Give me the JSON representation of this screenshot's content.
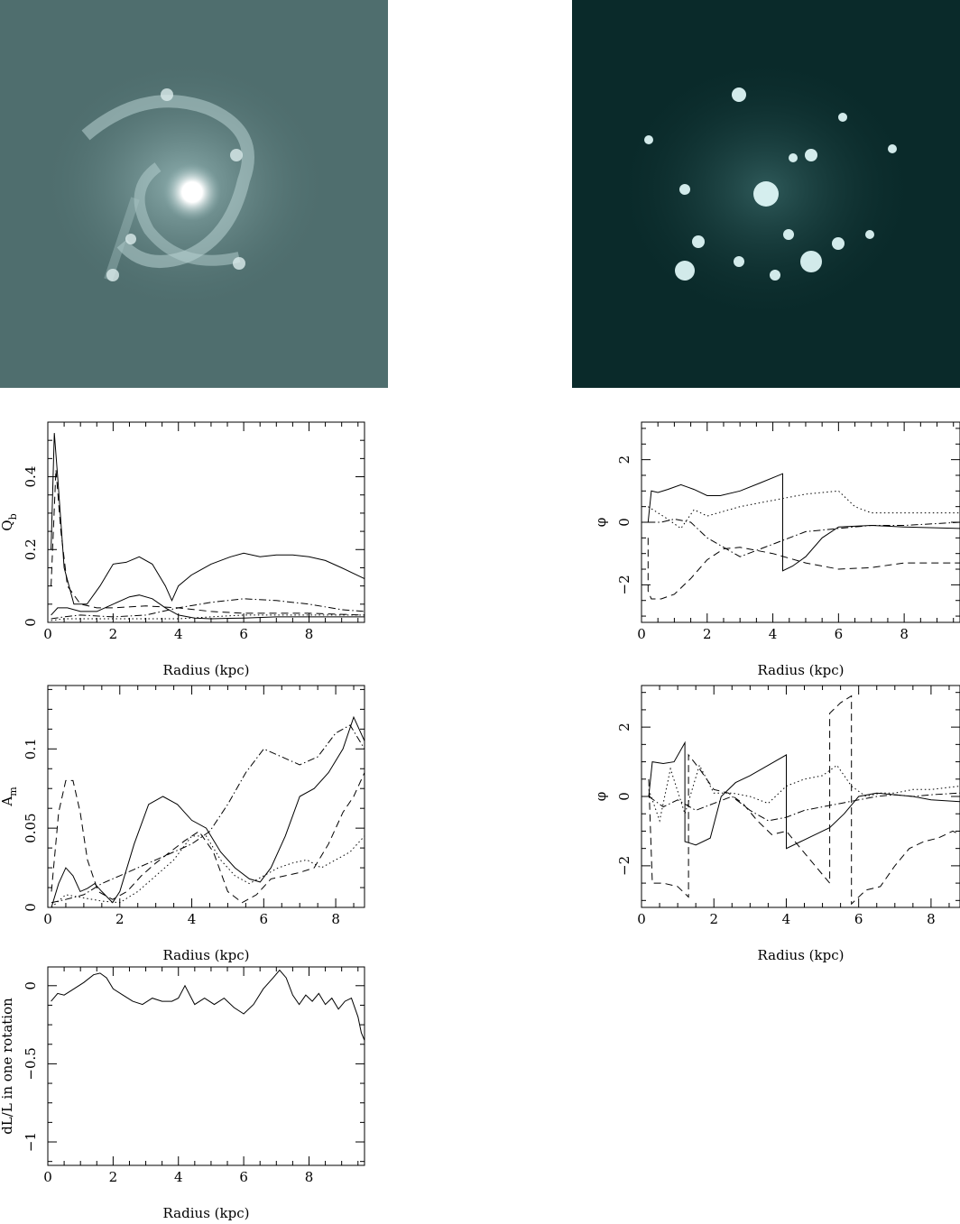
{
  "images": [
    {
      "name": "galaxy-near-infrared-image",
      "colormap": [
        "#4f6e6e",
        "#8fb0b0",
        "#ffffff"
      ]
    },
    {
      "name": "galaxy-residual-image",
      "colormap": [
        "#0a2a2a",
        "#2f5a5a",
        "#e8ffff"
      ]
    }
  ],
  "chart_data": [
    {
      "id": "qb",
      "type": "line",
      "xlabel": "Radius (kpc)",
      "ylabel": "Q",
      "ylabel_sub": "b",
      "xlim": [
        0,
        9.7
      ],
      "ylim": [
        0,
        0.55
      ],
      "xticks": [
        0,
        2,
        4,
        6,
        8
      ],
      "yticks": [
        0,
        0.2,
        0.4
      ],
      "ytick_labels": [
        "0",
        "0.2",
        "0.4"
      ],
      "series": [
        {
          "style": "solid",
          "x": [
            0.1,
            0.2,
            0.3,
            0.5,
            0.8,
            1.2,
            1.6,
            2.0,
            2.4,
            2.8,
            3.2,
            3.6,
            3.8,
            4.0,
            4.4,
            5.0,
            5.6,
            6.0,
            6.5,
            7.0,
            7.5,
            8.0,
            8.5,
            9.0,
            9.7
          ],
          "y": [
            0.2,
            0.52,
            0.4,
            0.15,
            0.05,
            0.05,
            0.1,
            0.16,
            0.165,
            0.18,
            0.16,
            0.1,
            0.06,
            0.1,
            0.13,
            0.16,
            0.18,
            0.19,
            0.18,
            0.185,
            0.185,
            0.18,
            0.17,
            0.15,
            0.12
          ]
        },
        {
          "style": "solid",
          "x": [
            0.1,
            0.3,
            0.6,
            1.0,
            1.5,
            2.0,
            2.5,
            2.8,
            3.2,
            3.6,
            4.0,
            4.5,
            5.0,
            6.0,
            7.0,
            8.0,
            9.0,
            9.7
          ],
          "y": [
            0.02,
            0.04,
            0.04,
            0.03,
            0.03,
            0.05,
            0.07,
            0.075,
            0.065,
            0.04,
            0.02,
            0.012,
            0.01,
            0.012,
            0.015,
            0.015,
            0.015,
            0.015
          ]
        },
        {
          "style": "dashed",
          "x": [
            0.1,
            0.25,
            0.4,
            0.6,
            1.0,
            1.5,
            2.0,
            3.0,
            4.0,
            5.0,
            6.0,
            7.0,
            8.0,
            9.0,
            9.7
          ],
          "y": [
            0.1,
            0.42,
            0.25,
            0.1,
            0.05,
            0.04,
            0.04,
            0.045,
            0.04,
            0.03,
            0.025,
            0.025,
            0.025,
            0.022,
            0.02
          ]
        },
        {
          "style": "dashdot",
          "x": [
            0.1,
            0.5,
            1.0,
            2.0,
            3.0,
            4.0,
            5.0,
            6.0,
            7.0,
            8.0,
            9.0,
            9.7
          ],
          "y": [
            0.01,
            0.015,
            0.02,
            0.015,
            0.02,
            0.04,
            0.055,
            0.065,
            0.06,
            0.05,
            0.035,
            0.03
          ]
        },
        {
          "style": "dotted",
          "x": [
            0.1,
            0.5,
            1.0,
            2.0,
            3.0,
            4.0,
            5.0,
            6.0,
            7.0,
            8.0,
            9.0,
            9.7
          ],
          "y": [
            0.005,
            0.01,
            0.01,
            0.01,
            0.01,
            0.01,
            0.015,
            0.02,
            0.02,
            0.02,
            0.02,
            0.02
          ]
        }
      ]
    },
    {
      "id": "phi-top",
      "type": "line",
      "xlabel": "Radius (kpc)",
      "ylabel": "φ",
      "xlim": [
        0,
        9.7
      ],
      "ylim": [
        -3.2,
        3.2
      ],
      "xticks": [
        0,
        2,
        4,
        6,
        8
      ],
      "yticks": [
        -2,
        0,
        2
      ],
      "ytick_labels": [
        "−2",
        "0",
        "2"
      ],
      "series": [
        {
          "style": "solid",
          "x": [
            0.2,
            0.3,
            0.5,
            0.8,
            1.2,
            1.6,
            2.0,
            2.4,
            3.0,
            3.6,
            4.3,
            4.3,
            4.6,
            5.0,
            5.5,
            6.0,
            7.0,
            8.0,
            9.7
          ],
          "y": [
            0.0,
            1.0,
            0.95,
            1.05,
            1.2,
            1.05,
            0.85,
            0.85,
            1.0,
            1.25,
            1.55,
            -1.55,
            -1.4,
            -1.1,
            -0.5,
            -0.15,
            -0.1,
            -0.15,
            -0.2
          ]
        },
        {
          "style": "dashed",
          "x": [
            0.2,
            0.2,
            0.3,
            0.6,
            1.0,
            1.5,
            2.0,
            2.5,
            3.0,
            4.0,
            5.0,
            6.0,
            7.0,
            8.0,
            9.7
          ],
          "y": [
            -0.5,
            -2.2,
            -2.45,
            -2.45,
            -2.3,
            -1.8,
            -1.2,
            -0.85,
            -0.8,
            -1.0,
            -1.3,
            -1.5,
            -1.45,
            -1.3,
            -1.3
          ]
        },
        {
          "style": "dotted",
          "x": [
            0.2,
            0.5,
            0.8,
            1.2,
            1.6,
            2.0,
            3.0,
            4.0,
            5.0,
            6.0,
            6.5,
            7.0,
            8.0,
            9.7
          ],
          "y": [
            0.5,
            0.3,
            0.1,
            -0.2,
            0.4,
            0.2,
            0.5,
            0.7,
            0.9,
            1.0,
            0.5,
            0.3,
            0.3,
            0.3
          ]
        },
        {
          "style": "dashdot",
          "x": [
            0.2,
            0.6,
            1.0,
            1.5,
            2.0,
            3.0,
            4.0,
            5.0,
            6.0,
            7.0,
            8.0,
            9.7
          ],
          "y": [
            0.0,
            0.0,
            0.1,
            0.0,
            -0.5,
            -1.1,
            -0.7,
            -0.3,
            -0.2,
            -0.1,
            -0.1,
            0.0
          ]
        }
      ]
    },
    {
      "id": "am",
      "type": "line",
      "xlabel": "Radius (kpc)",
      "ylabel": "A",
      "ylabel_sub": "m",
      "xlim": [
        0,
        8.8
      ],
      "ylim": [
        0,
        0.14
      ],
      "xticks": [
        0,
        2,
        4,
        6,
        8
      ],
      "yticks": [
        0,
        0.05,
        0.1
      ],
      "ytick_labels": [
        "0",
        "0.05",
        "0.1"
      ],
      "series": [
        {
          "style": "solid",
          "x": [
            0.1,
            0.3,
            0.5,
            0.7,
            0.9,
            1.1,
            1.3,
            1.5,
            1.8,
            2.0,
            2.4,
            2.8,
            3.2,
            3.6,
            4.0,
            4.4,
            4.8,
            5.2,
            5.6,
            5.9,
            6.2,
            6.6,
            7.0,
            7.4,
            7.8,
            8.2,
            8.5,
            8.7,
            8.8
          ],
          "y": [
            0.0,
            0.015,
            0.025,
            0.02,
            0.01,
            0.012,
            0.015,
            0.01,
            0.003,
            0.01,
            0.04,
            0.065,
            0.07,
            0.065,
            0.055,
            0.05,
            0.035,
            0.025,
            0.018,
            0.016,
            0.025,
            0.045,
            0.07,
            0.075,
            0.085,
            0.1,
            0.12,
            0.11,
            0.105
          ]
        },
        {
          "style": "dashed",
          "x": [
            0.1,
            0.3,
            0.5,
            0.7,
            0.9,
            1.1,
            1.4,
            1.8,
            2.2,
            2.6,
            3.0,
            3.4,
            3.8,
            4.2,
            4.6,
            5.0,
            5.4,
            5.8,
            6.2,
            6.6,
            7.0,
            7.4,
            7.8,
            8.2,
            8.5,
            8.8
          ],
          "y": [
            0.01,
            0.06,
            0.08,
            0.08,
            0.06,
            0.03,
            0.01,
            0.005,
            0.01,
            0.02,
            0.028,
            0.035,
            0.042,
            0.048,
            0.035,
            0.01,
            0.003,
            0.008,
            0.018,
            0.02,
            0.022,
            0.025,
            0.04,
            0.06,
            0.07,
            0.085
          ]
        },
        {
          "style": "dotted",
          "x": [
            0.1,
            0.5,
            1.0,
            1.5,
            2.0,
            2.5,
            3.0,
            3.5,
            4.0,
            4.4,
            4.8,
            5.2,
            5.6,
            6.0,
            6.4,
            6.8,
            7.2,
            7.6,
            8.0,
            8.4,
            8.8
          ],
          "y": [
            0.0,
            0.008,
            0.006,
            0.004,
            0.003,
            0.01,
            0.02,
            0.03,
            0.045,
            0.045,
            0.03,
            0.02,
            0.015,
            0.02,
            0.025,
            0.028,
            0.03,
            0.025,
            0.03,
            0.035,
            0.045
          ]
        },
        {
          "style": "dashdot",
          "x": [
            0.1,
            0.5,
            1.0,
            1.5,
            2.0,
            2.5,
            3.0,
            3.5,
            4.0,
            4.5,
            5.0,
            5.5,
            6.0,
            6.5,
            7.0,
            7.5,
            8.0,
            8.4,
            8.8
          ],
          "y": [
            0.003,
            0.005,
            0.008,
            0.015,
            0.02,
            0.025,
            0.03,
            0.035,
            0.04,
            0.048,
            0.065,
            0.085,
            0.1,
            0.095,
            0.09,
            0.095,
            0.11,
            0.115,
            0.1
          ]
        }
      ]
    },
    {
      "id": "phi-bottom",
      "type": "line",
      "xlabel": "Radius (kpc)",
      "ylabel": "φ",
      "xlim": [
        0,
        8.8
      ],
      "ylim": [
        -3.2,
        3.2
      ],
      "xticks": [
        0,
        2,
        4,
        6,
        8
      ],
      "yticks": [
        -2,
        0,
        2
      ],
      "ytick_labels": [
        "−2",
        "0",
        "2"
      ],
      "series": [
        {
          "style": "solid",
          "x": [
            0.2,
            0.3,
            0.6,
            0.9,
            1.2,
            1.2,
            1.5,
            1.9,
            2.2,
            2.6,
            3.0,
            3.5,
            4.0,
            4.0,
            4.4,
            4.8,
            5.2,
            5.6,
            6.0,
            6.5,
            7.0,
            7.5,
            8.0,
            8.8
          ],
          "y": [
            0.0,
            1.0,
            0.95,
            1.0,
            1.55,
            -1.3,
            -1.4,
            -1.2,
            0.0,
            0.4,
            0.6,
            0.9,
            1.2,
            -1.5,
            -1.3,
            -1.1,
            -0.9,
            -0.5,
            0.0,
            0.1,
            0.05,
            0.0,
            -0.1,
            -0.15
          ]
        },
        {
          "style": "dashed",
          "x": [
            0.2,
            0.3,
            0.6,
            1.0,
            1.3,
            1.3,
            1.6,
            2.0,
            2.4,
            2.8,
            3.2,
            3.6,
            4.0,
            4.4,
            4.8,
            5.2,
            5.2,
            5.5,
            5.8,
            5.8,
            6.2,
            6.6,
            7.0,
            7.4,
            7.8,
            8.2,
            8.6,
            8.8
          ],
          "y": [
            0.5,
            -2.5,
            -2.5,
            -2.6,
            -2.9,
            1.2,
            0.8,
            0.2,
            0.1,
            -0.2,
            -0.7,
            -1.1,
            -1.0,
            -1.5,
            -2.0,
            -2.5,
            2.4,
            2.7,
            2.9,
            -3.1,
            -2.7,
            -2.6,
            -2.0,
            -1.5,
            -1.3,
            -1.2,
            -1.0,
            -1.1
          ]
        },
        {
          "style": "dotted",
          "x": [
            0.2,
            0.5,
            0.8,
            1.2,
            1.6,
            2.0,
            2.5,
            3.0,
            3.5,
            4.0,
            4.5,
            5.0,
            5.4,
            5.8,
            6.2,
            6.6,
            7.0,
            7.5,
            8.0,
            8.8
          ],
          "y": [
            0.2,
            -0.7,
            0.8,
            -0.5,
            0.9,
            0.1,
            0.1,
            0.0,
            -0.2,
            0.3,
            0.5,
            0.6,
            0.9,
            0.3,
            0.0,
            0.1,
            0.1,
            0.2,
            0.2,
            0.3
          ]
        },
        {
          "style": "dashdot",
          "x": [
            0.2,
            0.6,
            1.0,
            1.5,
            2.0,
            2.5,
            3.0,
            3.5,
            4.0,
            4.5,
            5.0,
            5.5,
            6.0,
            6.5,
            7.0,
            7.5,
            8.0,
            8.8
          ],
          "y": [
            0.0,
            -0.3,
            -0.1,
            -0.4,
            -0.2,
            0.0,
            -0.4,
            -0.7,
            -0.6,
            -0.4,
            -0.3,
            -0.2,
            -0.1,
            0.0,
            0.05,
            0.0,
            0.05,
            0.1
          ]
        }
      ]
    },
    {
      "id": "dl",
      "type": "line",
      "xlabel": "Radius (kpc)",
      "ylabel": "dL/L in one rotation",
      "xlim": [
        0,
        9.7
      ],
      "ylim": [
        -1.15,
        0.12
      ],
      "xticks": [
        0,
        2,
        4,
        6,
        8
      ],
      "yticks": [
        -1,
        -0.5,
        0
      ],
      "ytick_labels": [
        "−1",
        "−0.5",
        "0"
      ],
      "series": [
        {
          "style": "solid",
          "x": [
            0.1,
            0.3,
            0.5,
            0.8,
            1.1,
            1.4,
            1.6,
            1.8,
            2.0,
            2.3,
            2.6,
            2.9,
            3.2,
            3.5,
            3.8,
            4.0,
            4.2,
            4.5,
            4.8,
            5.1,
            5.4,
            5.7,
            6.0,
            6.3,
            6.6,
            6.9,
            7.1,
            7.3,
            7.5,
            7.7,
            7.9,
            8.1,
            8.3,
            8.5,
            8.7,
            8.9,
            9.1,
            9.3,
            9.5,
            9.6,
            9.7
          ],
          "y": [
            -0.1,
            -0.05,
            -0.06,
            -0.02,
            0.02,
            0.07,
            0.08,
            0.05,
            -0.02,
            -0.06,
            -0.1,
            -0.12,
            -0.08,
            -0.1,
            -0.1,
            -0.08,
            0.0,
            -0.12,
            -0.08,
            -0.12,
            -0.08,
            -0.14,
            -0.18,
            -0.12,
            -0.02,
            0.05,
            0.1,
            0.05,
            -0.06,
            -0.12,
            -0.06,
            -0.1,
            -0.05,
            -0.12,
            -0.08,
            -0.15,
            -0.1,
            -0.08,
            -0.2,
            -0.3,
            -0.35
          ]
        }
      ]
    }
  ]
}
